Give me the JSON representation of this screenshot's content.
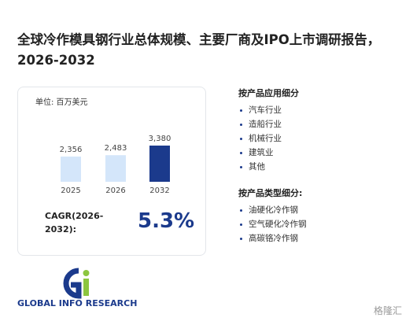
{
  "title": "全球冷作模具钢行业总体规模、主要厂商及IPO上市调研报告，2026-2032",
  "chart_data": {
    "type": "bar",
    "unit": "单位: 百万美元",
    "categories": [
      "2025",
      "2026",
      "2032"
    ],
    "values": [
      2356,
      2483,
      3380
    ],
    "value_labels": [
      "2,356",
      "2,483",
      "3,380"
    ],
    "colors": [
      "#d4e6fa",
      "#d4e6fa",
      "#1b3a8c"
    ]
  },
  "cagr": {
    "label": "CAGR(2026-2032):",
    "value": "5.3%"
  },
  "segments": [
    {
      "heading": "按产品应用细分",
      "items": [
        "汽车行业",
        "造船行业",
        "机械行业",
        "建筑业",
        "其他"
      ]
    },
    {
      "heading": "按产品类型细分:",
      "items": [
        "油硬化冷作钢",
        "空气硬化冷作钢",
        "高碳铬冷作钢"
      ]
    }
  ],
  "logo": "GLOBAL INFO RESEARCH",
  "watermark": "格隆汇"
}
